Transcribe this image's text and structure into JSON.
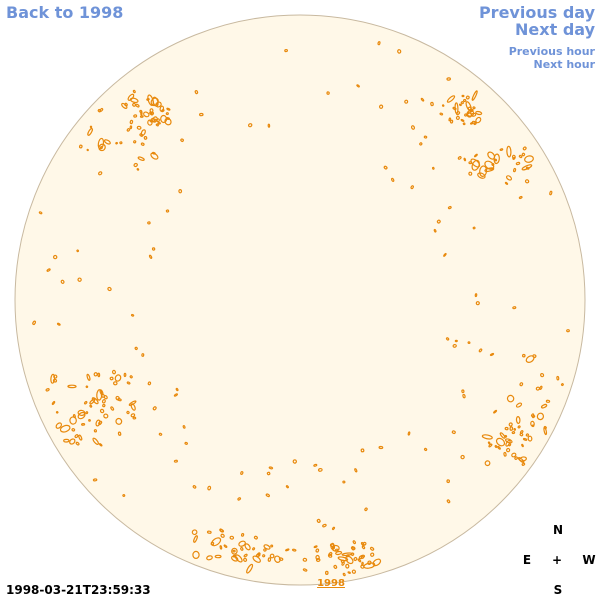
{
  "nav": {
    "back": "Back to 1998",
    "previous_day": "Previous day",
    "next_day": "Next day",
    "previous_hour": "Previous hour",
    "next_hour": "Next hour"
  },
  "timestamp": "1998-03-21T23:59:33",
  "year_link": "1998",
  "compass": {
    "north": "N",
    "east": "E",
    "center": "+",
    "west": "W",
    "south": "S"
  },
  "colors": {
    "disk_fill": "#fff8e8",
    "disk_edge": "#c8b9a0",
    "contour": "#e8890c",
    "link": "#6f93d8"
  }
}
